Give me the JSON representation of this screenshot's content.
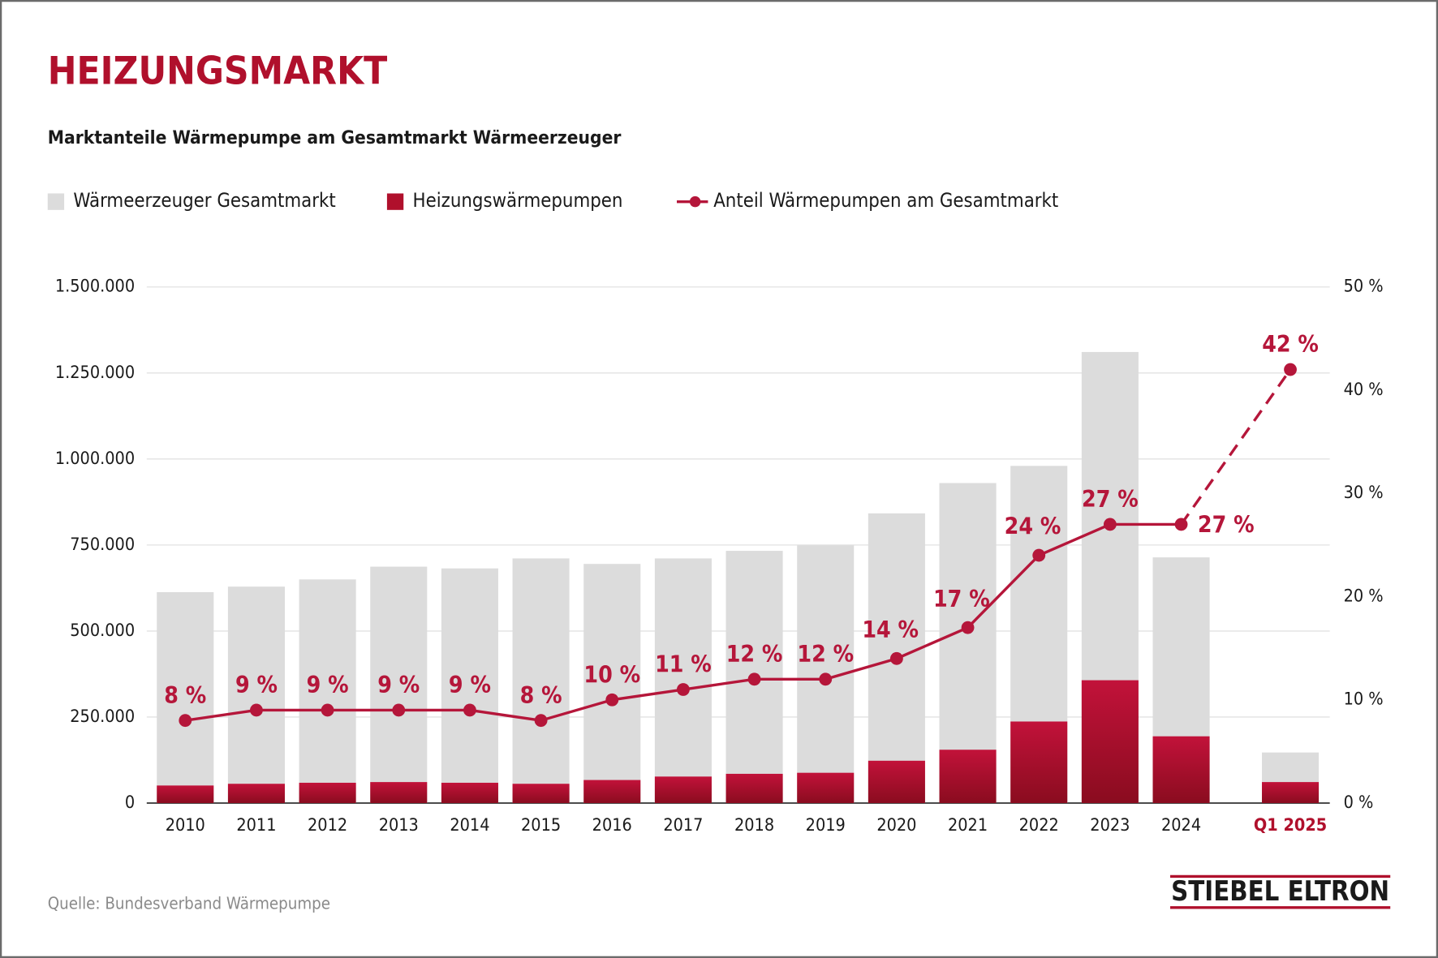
{
  "chart_data": {
    "type": "bar",
    "title": "HEIZUNGSMARKT",
    "subtitle": "Marktanteile Wärmepumpe am Gesamtmarkt Wärmeerzeuger",
    "source": "Quelle: Bundesverband Wärmepumpe",
    "categories": [
      "2010",
      "2011",
      "2012",
      "2013",
      "2014",
      "2015",
      "2016",
      "2017",
      "2018",
      "2019",
      "2020",
      "2021",
      "2022",
      "2023",
      "2024",
      "Q1 2025"
    ],
    "series": [
      {
        "name": "Wärmeerzeuger Gesamtmarkt",
        "color": "#dcdcdc",
        "values": [
          613000,
          629000,
          650000,
          687000,
          682000,
          711000,
          695000,
          711000,
          733000,
          749000,
          842000,
          930000,
          980000,
          1311000,
          714000,
          147000
        ]
      },
      {
        "name": "Heizungswärmepumpen",
        "color": "#b0102c",
        "values": [
          51000,
          56000,
          59000,
          61000,
          59000,
          56000,
          67000,
          77000,
          85000,
          88000,
          123000,
          155000,
          237000,
          357000,
          194000,
          61000
        ]
      },
      {
        "name": "Anteil Wärmepumpen am Gesamtmarkt",
        "color": "#b5163a",
        "type": "line",
        "axis": "y2",
        "values": [
          8,
          9,
          9,
          9,
          9,
          8,
          10,
          11,
          12,
          12,
          14,
          17,
          24,
          27,
          27,
          42
        ],
        "value_labels": [
          "8 %",
          "9 %",
          "9 %",
          "9 %",
          "9 %",
          "8 %",
          "10 %",
          "11 %",
          "12 %",
          "12 %",
          "14 %",
          "17 %",
          "24 %",
          "27 %",
          "27 %",
          "42 %"
        ]
      }
    ],
    "ylim": [
      0,
      1500000
    ],
    "yticks": [
      0,
      {
        "value": 250000,
        "label": "250.000"
      },
      {
        "value": 500000,
        "label": "500.000"
      },
      {
        "value": 750000,
        "label": "750.000"
      },
      {
        "value": 1000000,
        "label": "1.000.000"
      },
      {
        "value": 1250000,
        "label": "1.250.000"
      },
      {
        "value": 1500000,
        "label": "1.500.000"
      }
    ],
    "y2lim": [
      0,
      50
    ],
    "y2ticks": [
      {
        "value": 0,
        "label": "0 %"
      },
      {
        "value": 10,
        "label": "10 %"
      },
      {
        "value": 20,
        "label": "20 %"
      },
      {
        "value": 30,
        "label": "30 %"
      },
      {
        "value": 40,
        "label": "40 %"
      },
      {
        "value": 50,
        "label": "50 %"
      }
    ],
    "grid": true
  },
  "brand": "STIEBEL ELTRON"
}
